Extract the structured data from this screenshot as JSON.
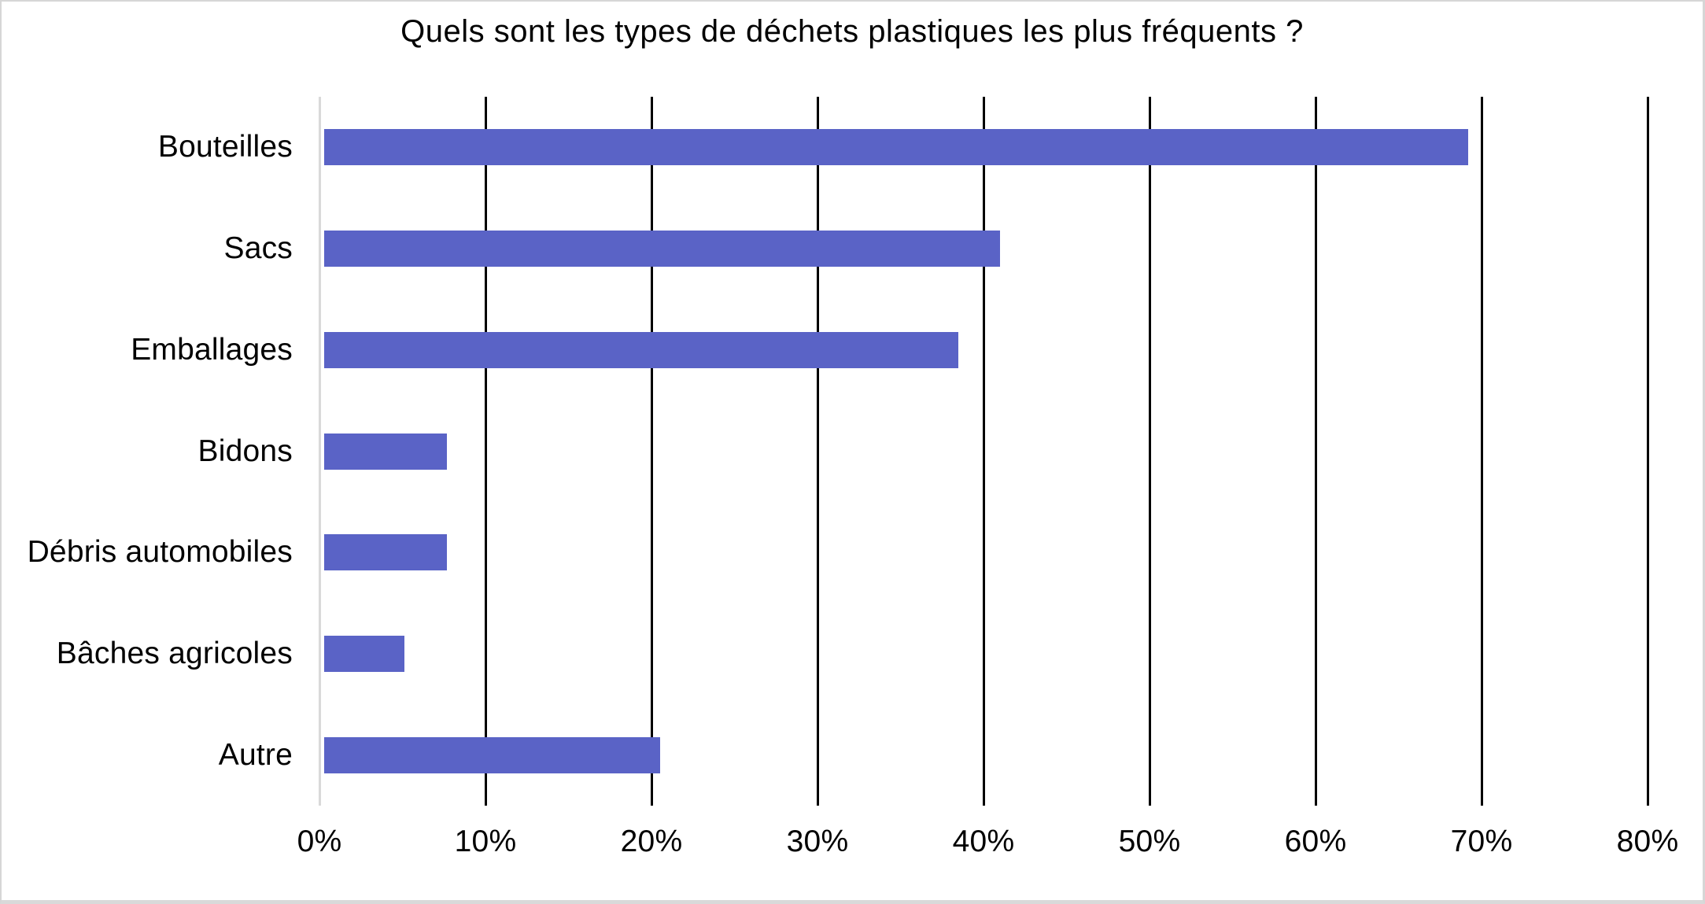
{
  "chart_data": {
    "type": "bar",
    "orientation": "horizontal",
    "title": "Quels sont les types de déchets plastiques les plus fréquents ?",
    "categories": [
      "Bouteilles",
      "Sacs",
      "Emballages",
      "Bidons",
      "Débris automobiles",
      "Bâches agricoles",
      "Autre"
    ],
    "values": [
      69.2,
      41.0,
      38.5,
      7.7,
      7.7,
      5.1,
      20.5
    ],
    "unit": "%",
    "xlabel": "",
    "ylabel": "",
    "xlim": [
      0,
      80
    ],
    "x_tick_values": [
      0,
      10,
      20,
      30,
      40,
      50,
      60,
      70,
      80
    ],
    "x_tick_labels": [
      "0%",
      "10%",
      "20%",
      "30%",
      "40%",
      "50%",
      "60%",
      "70%",
      "80%"
    ],
    "grid": "vertical-major",
    "legend": "none",
    "colors": {
      "bar": "#5A63C6",
      "gridline": "#000000",
      "zero_axis_line": "#D9D9D9",
      "text": "#000000",
      "page_border": "#D6D6D6"
    }
  }
}
